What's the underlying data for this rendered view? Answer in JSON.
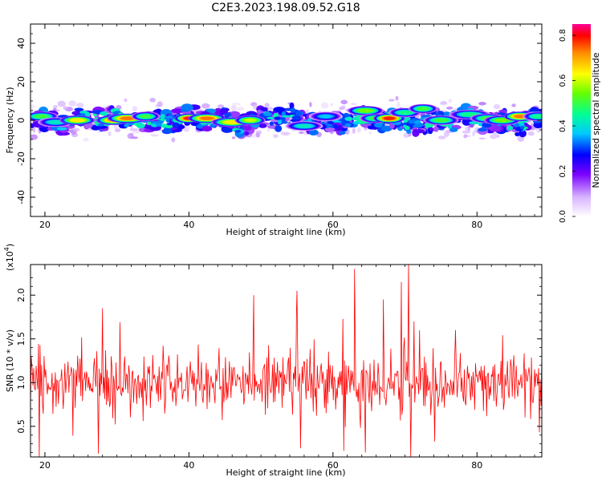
{
  "title": "C2E3.2023.198.09.52.G18",
  "chart_data": [
    {
      "type": "heatmap",
      "xlabel": "Height of straight line (km)",
      "ylabel": "Frequency (Hz)",
      "xlim": [
        18,
        89
      ],
      "ylim": [
        -50,
        50
      ],
      "x_ticks": [
        20,
        40,
        60,
        80
      ],
      "y_ticks": [
        -40,
        -20,
        0,
        20,
        40
      ],
      "colorbar": {
        "label": "Normalized spectral amplitude",
        "range": [
          0.0,
          0.85
        ],
        "ticks": [
          "0.0",
          "0.2",
          "0.4",
          "0.6",
          "0.8"
        ]
      },
      "band": {
        "center_hz": 0,
        "core_half_width_hz": 4,
        "halo_half_width_hz": 10
      },
      "peaks": [
        {
          "x": 19.5,
          "y": 2,
          "v": 0.55
        },
        {
          "x": 21.5,
          "y": -1,
          "v": 0.45
        },
        {
          "x": 24.5,
          "y": 0,
          "v": 0.7
        },
        {
          "x": 29.5,
          "y": 0,
          "v": 0.75
        },
        {
          "x": 31.5,
          "y": 1,
          "v": 0.8
        },
        {
          "x": 34.0,
          "y": 2,
          "v": 0.55
        },
        {
          "x": 40.0,
          "y": 1,
          "v": 0.85
        },
        {
          "x": 42.5,
          "y": 1,
          "v": 0.8
        },
        {
          "x": 46.0,
          "y": -1,
          "v": 0.7
        },
        {
          "x": 48.5,
          "y": 0,
          "v": 0.65
        },
        {
          "x": 56.0,
          "y": -3,
          "v": 0.45
        },
        {
          "x": 59.0,
          "y": 2,
          "v": 0.4
        },
        {
          "x": 64.5,
          "y": 5,
          "v": 0.6
        },
        {
          "x": 66.0,
          "y": 1,
          "v": 0.55
        },
        {
          "x": 67.8,
          "y": 1,
          "v": 0.85
        },
        {
          "x": 70.0,
          "y": 4,
          "v": 0.5
        },
        {
          "x": 72.5,
          "y": 6,
          "v": 0.55
        },
        {
          "x": 75.0,
          "y": 0,
          "v": 0.55
        },
        {
          "x": 79.0,
          "y": 3,
          "v": 0.5
        },
        {
          "x": 81.5,
          "y": 1,
          "v": 0.55
        },
        {
          "x": 83.5,
          "y": 0,
          "v": 0.6
        },
        {
          "x": 86.0,
          "y": 2,
          "v": 0.8
        },
        {
          "x": 88.5,
          "y": 2,
          "v": 0.5
        }
      ]
    },
    {
      "type": "line",
      "xlabel": "Height of straight line (km)",
      "ylabel": "SNR (10 * v/v)",
      "multiplier": "(x10",
      "multiplier_exp": "4",
      "multiplier_close": ")",
      "xlim": [
        18,
        89
      ],
      "ylim": [
        0.15,
        2.35
      ],
      "x_ticks": [
        20,
        40,
        60,
        80
      ],
      "y_ticks": [
        "0.5",
        "1.0",
        "1.5",
        "2.0"
      ],
      "series": [
        {
          "color": "#ff0000",
          "x_range": [
            18,
            89
          ],
          "mean": 1.0,
          "spread": 0.3,
          "spikes": [
            {
              "x": 63.0,
              "y": 2.3
            },
            {
              "x": 70.5,
              "y": 2.35
            },
            {
              "x": 55.0,
              "y": 2.05
            },
            {
              "x": 69.5,
              "y": 2.15
            },
            {
              "x": 49.0,
              "y": 2.0
            },
            {
              "x": 28.0,
              "y": 1.85
            },
            {
              "x": 67.0,
              "y": 1.95
            },
            {
              "x": 64.5,
              "y": 0.2
            },
            {
              "x": 70.8,
              "y": 0.15
            },
            {
              "x": 61.5,
              "y": 0.22
            },
            {
              "x": 55.5,
              "y": 0.25
            }
          ]
        }
      ]
    }
  ]
}
